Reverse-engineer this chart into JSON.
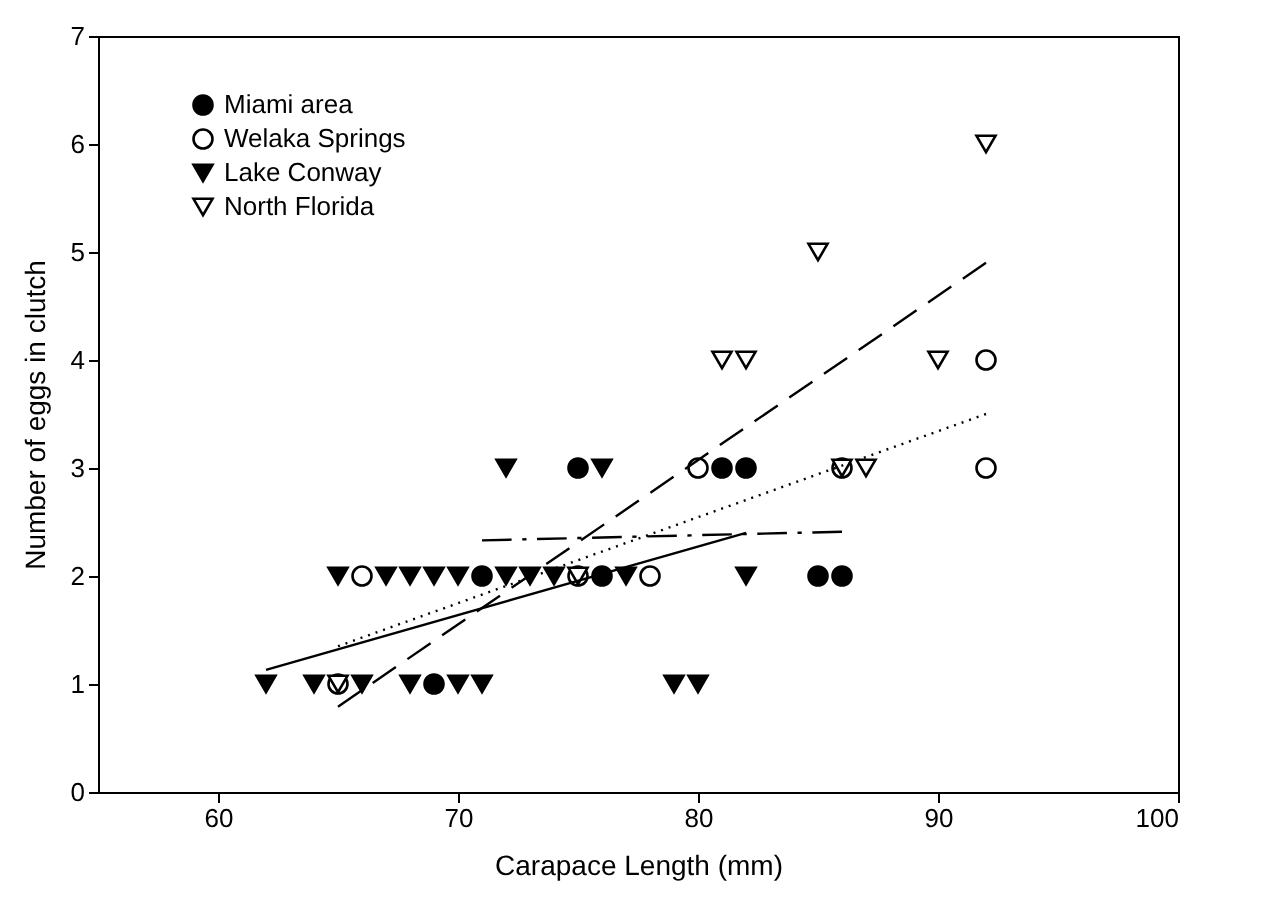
{
  "chart_data": {
    "type": "scatter",
    "xlabel": "Carapace Length (mm)",
    "ylabel": "Number of eggs in clutch",
    "xlim": [
      55,
      100
    ],
    "xticks": [
      60,
      70,
      80,
      90,
      100
    ],
    "ylim": [
      0,
      7
    ],
    "yticks": [
      0,
      1,
      2,
      3,
      4,
      5,
      6,
      7
    ],
    "grid": false,
    "legend": "top left",
    "series": [
      {
        "name": "Miami area",
        "color": "#000000",
        "marker": "circle",
        "x": [
          69,
          71,
          75,
          76,
          81,
          82,
          85,
          86
        ],
        "values": [
          1,
          2,
          3,
          2,
          3,
          3,
          2,
          2
        ]
      },
      {
        "name": "Welaka Springs",
        "color": "#000000",
        "marker": "circle-open",
        "x": [
          65,
          66,
          75,
          78,
          80,
          86,
          92,
          92
        ],
        "values": [
          1,
          2,
          2,
          2,
          3,
          3,
          3,
          4
        ]
      },
      {
        "name": "Lake Conway",
        "color": "#000000",
        "marker": "triangle-down",
        "x": [
          62,
          64,
          66,
          68,
          70,
          71,
          65,
          67,
          68,
          69,
          70,
          72,
          73,
          74,
          77,
          79,
          80,
          82,
          72,
          76
        ],
        "values": [
          1,
          1,
          1,
          1,
          1,
          1,
          2,
          2,
          2,
          2,
          2,
          2,
          2,
          2,
          2,
          1,
          1,
          2,
          3,
          3
        ]
      },
      {
        "name": "North Florida",
        "color": "#000000",
        "marker": "triangle-down-open",
        "x": [
          65,
          75,
          86,
          87,
          81,
          82,
          90,
          85,
          92
        ],
        "values": [
          1,
          2,
          3,
          3,
          4,
          4,
          4,
          5,
          6
        ]
      },
      {
        "type": "line",
        "color": "#000000",
        "line_style": "dashdot",
        "x": [
          71,
          86
        ],
        "values": [
          2.33,
          2.41
        ]
      },
      {
        "type": "line",
        "color": "#000000",
        "line_style": "dotted",
        "x": [
          65,
          92
        ],
        "values": [
          1.35,
          3.5
        ]
      },
      {
        "type": "line",
        "color": "#000000",
        "line_style": "solid",
        "x": [
          62,
          82
        ],
        "values": [
          1.13,
          2.4
        ]
      },
      {
        "type": "line",
        "color": "#000000",
        "line_style": "dashed",
        "x": [
          65,
          92
        ],
        "values": [
          0.79,
          4.9
        ]
      }
    ]
  }
}
